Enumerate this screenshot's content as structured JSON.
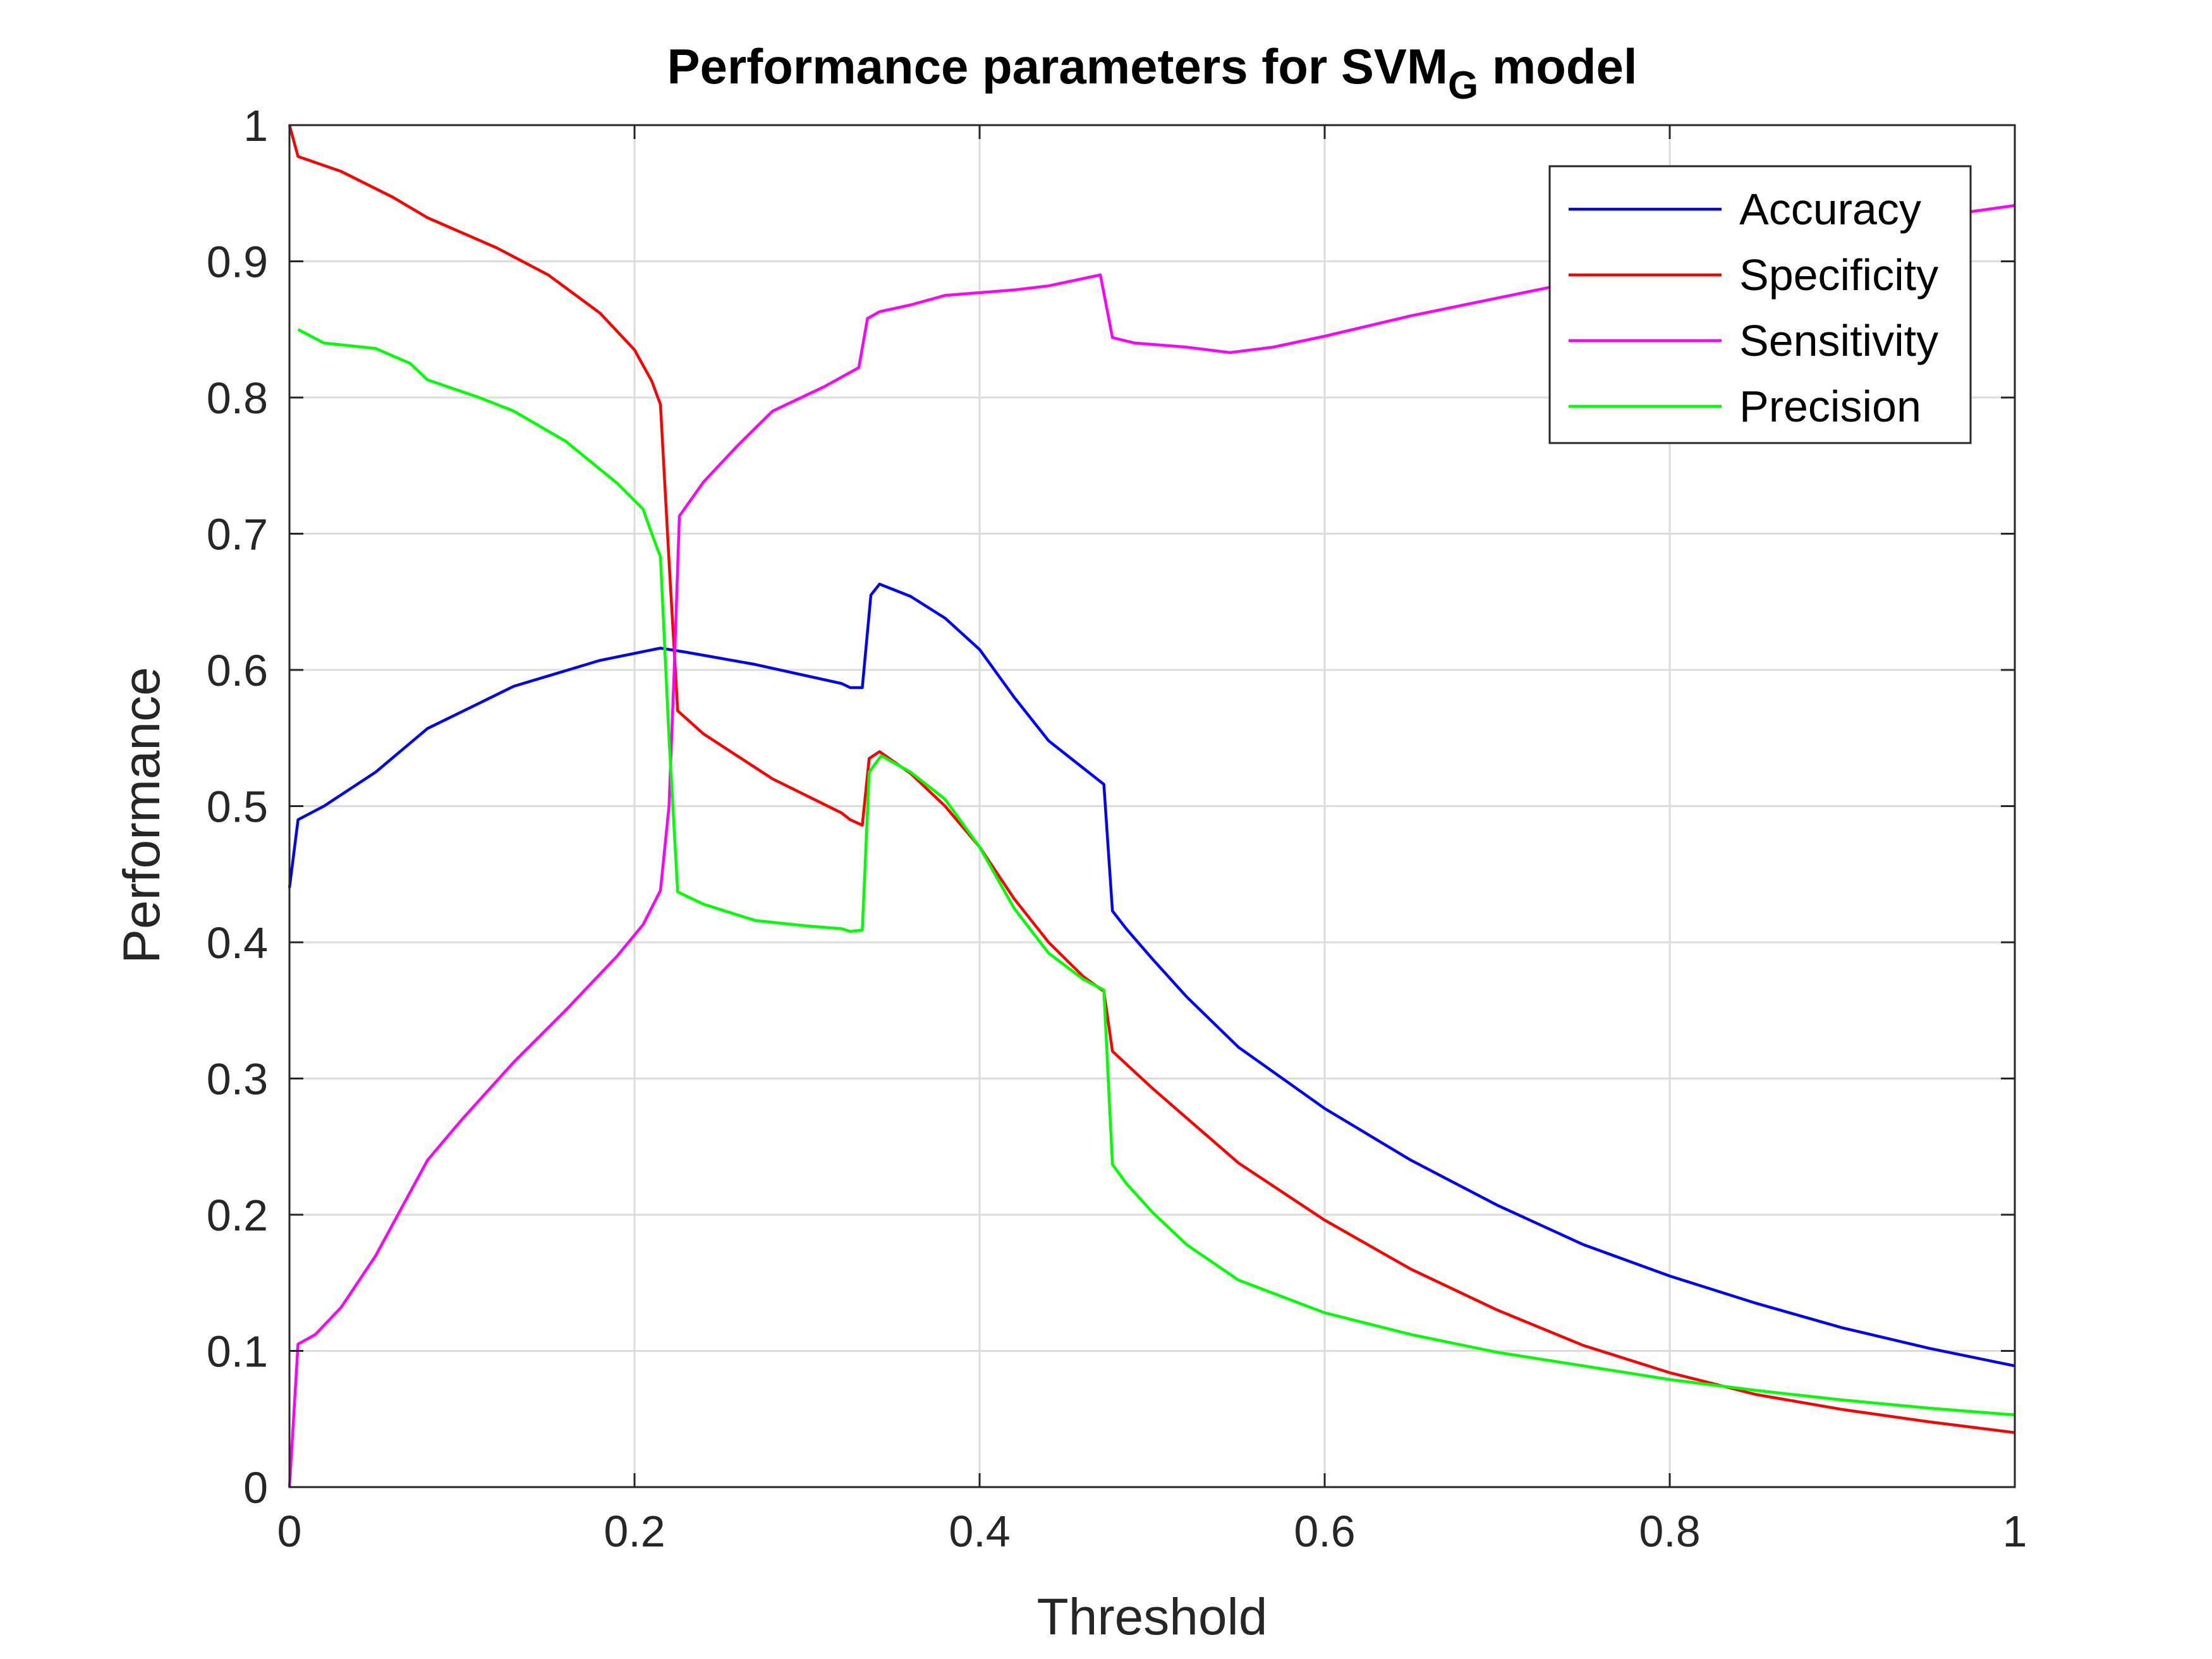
{
  "chart_data": {
    "type": "line",
    "title": "Performance parameters for SVM",
    "title_subscript": "G",
    "title_suffix": " model",
    "xlabel": "Threshold",
    "ylabel": "Performance",
    "xlim": [
      0,
      1
    ],
    "ylim": [
      0,
      1
    ],
    "xticks": [
      0,
      0.2,
      0.4,
      0.6,
      0.8,
      1
    ],
    "xtick_labels": [
      "0",
      "0.2",
      "0.4",
      "0.6",
      "0.8",
      "1"
    ],
    "yticks": [
      0,
      0.1,
      0.2,
      0.3,
      0.4,
      0.5,
      0.6,
      0.7,
      0.8,
      0.9,
      1
    ],
    "ytick_labels": [
      "0",
      "0.1",
      "0.2",
      "0.3",
      "0.4",
      "0.5",
      "0.6",
      "0.7",
      "0.8",
      "0.9",
      "1"
    ],
    "grid": true,
    "legend_position": "top-right",
    "series": [
      {
        "name": "Accuracy",
        "color": "#0000ff",
        "points": [
          [
            0,
            0.44
          ],
          [
            0.005,
            0.49
          ],
          [
            0.02,
            0.5
          ],
          [
            0.05,
            0.525
          ],
          [
            0.08,
            0.557
          ],
          [
            0.13,
            0.588
          ],
          [
            0.18,
            0.607
          ],
          [
            0.215,
            0.616
          ],
          [
            0.23,
            0.613
          ],
          [
            0.27,
            0.604
          ],
          [
            0.32,
            0.59
          ],
          [
            0.325,
            0.587
          ],
          [
            0.332,
            0.587
          ],
          [
            0.337,
            0.655
          ],
          [
            0.342,
            0.663
          ],
          [
            0.36,
            0.654
          ],
          [
            0.38,
            0.638
          ],
          [
            0.4,
            0.615
          ],
          [
            0.42,
            0.58
          ],
          [
            0.44,
            0.548
          ],
          [
            0.46,
            0.528
          ],
          [
            0.472,
            0.516
          ],
          [
            0.477,
            0.423
          ],
          [
            0.485,
            0.41
          ],
          [
            0.5,
            0.388
          ],
          [
            0.52,
            0.36
          ],
          [
            0.55,
            0.323
          ],
          [
            0.6,
            0.278
          ],
          [
            0.65,
            0.24
          ],
          [
            0.7,
            0.207
          ],
          [
            0.75,
            0.178
          ],
          [
            0.8,
            0.155
          ],
          [
            0.85,
            0.135
          ],
          [
            0.9,
            0.117
          ],
          [
            0.95,
            0.102
          ],
          [
            1,
            0.089
          ]
        ]
      },
      {
        "name": "Specificity",
        "color": "#ff0000",
        "points": [
          [
            0,
            1
          ],
          [
            0.005,
            0.977
          ],
          [
            0.03,
            0.966
          ],
          [
            0.06,
            0.947
          ],
          [
            0.08,
            0.932
          ],
          [
            0.12,
            0.91
          ],
          [
            0.15,
            0.89
          ],
          [
            0.18,
            0.862
          ],
          [
            0.2,
            0.835
          ],
          [
            0.21,
            0.812
          ],
          [
            0.215,
            0.795
          ],
          [
            0.22,
            0.68
          ],
          [
            0.225,
            0.57
          ],
          [
            0.24,
            0.553
          ],
          [
            0.28,
            0.52
          ],
          [
            0.32,
            0.495
          ],
          [
            0.325,
            0.49
          ],
          [
            0.332,
            0.486
          ],
          [
            0.336,
            0.535
          ],
          [
            0.342,
            0.54
          ],
          [
            0.36,
            0.524
          ],
          [
            0.38,
            0.5
          ],
          [
            0.4,
            0.47
          ],
          [
            0.42,
            0.432
          ],
          [
            0.44,
            0.4
          ],
          [
            0.46,
            0.375
          ],
          [
            0.472,
            0.364
          ],
          [
            0.477,
            0.32
          ],
          [
            0.5,
            0.293
          ],
          [
            0.55,
            0.238
          ],
          [
            0.6,
            0.196
          ],
          [
            0.65,
            0.16
          ],
          [
            0.7,
            0.13
          ],
          [
            0.75,
            0.104
          ],
          [
            0.8,
            0.084
          ],
          [
            0.85,
            0.068
          ],
          [
            0.9,
            0.057
          ],
          [
            0.95,
            0.048
          ],
          [
            1,
            0.04
          ]
        ]
      },
      {
        "name": "Sensitivity",
        "color": "#ff00ff",
        "points": [
          [
            0,
            0
          ],
          [
            0.005,
            0.105
          ],
          [
            0.015,
            0.112
          ],
          [
            0.03,
            0.132
          ],
          [
            0.05,
            0.17
          ],
          [
            0.08,
            0.24
          ],
          [
            0.1,
            0.27
          ],
          [
            0.13,
            0.312
          ],
          [
            0.16,
            0.35
          ],
          [
            0.19,
            0.39
          ],
          [
            0.205,
            0.413
          ],
          [
            0.215,
            0.438
          ],
          [
            0.22,
            0.5
          ],
          [
            0.223,
            0.6
          ],
          [
            0.226,
            0.713
          ],
          [
            0.24,
            0.738
          ],
          [
            0.26,
            0.765
          ],
          [
            0.28,
            0.79
          ],
          [
            0.31,
            0.808
          ],
          [
            0.33,
            0.822
          ],
          [
            0.335,
            0.858
          ],
          [
            0.342,
            0.863
          ],
          [
            0.36,
            0.868
          ],
          [
            0.38,
            0.875
          ],
          [
            0.42,
            0.879
          ],
          [
            0.44,
            0.882
          ],
          [
            0.47,
            0.89
          ],
          [
            0.477,
            0.844
          ],
          [
            0.49,
            0.84
          ],
          [
            0.52,
            0.837
          ],
          [
            0.545,
            0.833
          ],
          [
            0.57,
            0.837
          ],
          [
            0.6,
            0.845
          ],
          [
            0.65,
            0.86
          ],
          [
            0.7,
            0.873
          ],
          [
            0.75,
            0.886
          ],
          [
            0.8,
            0.897
          ],
          [
            0.85,
            0.908
          ],
          [
            0.9,
            0.92
          ],
          [
            0.95,
            0.932
          ],
          [
            1,
            0.941
          ]
        ]
      },
      {
        "name": "Precision",
        "color": "#00ff00",
        "points": [
          [
            0.005,
            0.85
          ],
          [
            0.02,
            0.84
          ],
          [
            0.05,
            0.836
          ],
          [
            0.07,
            0.825
          ],
          [
            0.08,
            0.813
          ],
          [
            0.11,
            0.8
          ],
          [
            0.13,
            0.79
          ],
          [
            0.16,
            0.768
          ],
          [
            0.19,
            0.737
          ],
          [
            0.205,
            0.718
          ],
          [
            0.21,
            0.7
          ],
          [
            0.215,
            0.683
          ],
          [
            0.22,
            0.55
          ],
          [
            0.225,
            0.437
          ],
          [
            0.24,
            0.428
          ],
          [
            0.27,
            0.416
          ],
          [
            0.3,
            0.412
          ],
          [
            0.32,
            0.41
          ],
          [
            0.325,
            0.408
          ],
          [
            0.332,
            0.409
          ],
          [
            0.336,
            0.525
          ],
          [
            0.343,
            0.537
          ],
          [
            0.36,
            0.525
          ],
          [
            0.38,
            0.505
          ],
          [
            0.4,
            0.47
          ],
          [
            0.42,
            0.425
          ],
          [
            0.44,
            0.392
          ],
          [
            0.46,
            0.373
          ],
          [
            0.472,
            0.365
          ],
          [
            0.477,
            0.237
          ],
          [
            0.485,
            0.223
          ],
          [
            0.5,
            0.202
          ],
          [
            0.52,
            0.178
          ],
          [
            0.55,
            0.152
          ],
          [
            0.6,
            0.128
          ],
          [
            0.65,
            0.112
          ],
          [
            0.7,
            0.099
          ],
          [
            0.75,
            0.089
          ],
          [
            0.8,
            0.079
          ],
          [
            0.85,
            0.071
          ],
          [
            0.9,
            0.064
          ],
          [
            0.95,
            0.058
          ],
          [
            1,
            0.053
          ]
        ]
      }
    ]
  }
}
